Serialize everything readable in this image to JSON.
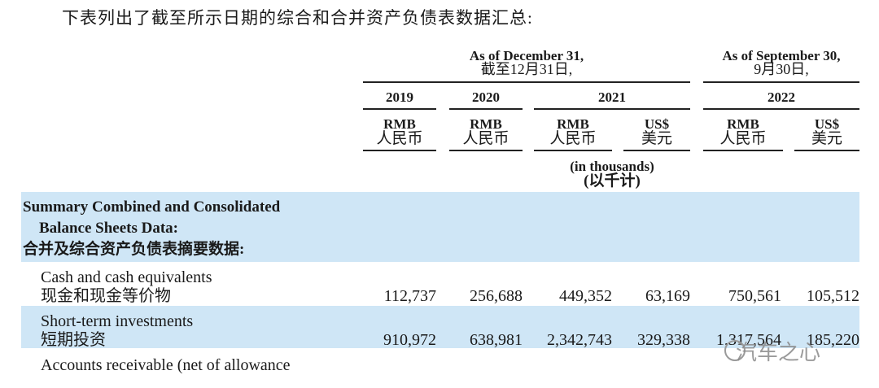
{
  "intro": "下表列出了截至所示日期的综合和合并资产负债表数据汇总:",
  "headers": {
    "dec_en": "As of December 31,",
    "dec_zh": "截至12月31日,",
    "sep_en": "As of September 30,",
    "sep_zh": "9月30日,",
    "years": [
      "2019",
      "2020",
      "2021",
      "2022"
    ]
  },
  "units": {
    "rmb_en": "RMB",
    "rmb_zh": "人民币",
    "usd_en": "US$",
    "usd_zh": "美元",
    "thousands_en": "(in thousands)",
    "thousands_zh": "(以千计)"
  },
  "section": {
    "title_en_1": "Summary Combined and Consolidated",
    "title_en_2": "Balance Sheets Data:",
    "title_zh": "合并及综合资产负债表摘要数据:"
  },
  "rows": [
    {
      "en": "Cash and cash equivalents",
      "zh": "现金和现金等价物",
      "values": [
        "112,737",
        "256,688",
        "449,352",
        "63,169",
        "750,561",
        "105,512"
      ]
    },
    {
      "en": "Short-term investments",
      "zh": "短期投资",
      "values": [
        "910,972",
        "638,981",
        "2,342,743",
        "329,338",
        "1,317,564",
        "185,220"
      ]
    },
    {
      "en": "Accounts receivable (net of allowance",
      "zh": "",
      "values": []
    }
  ],
  "watermark": "汽车之心",
  "colors": {
    "band": "#cfe6f6",
    "text": "#1a1a1a"
  }
}
